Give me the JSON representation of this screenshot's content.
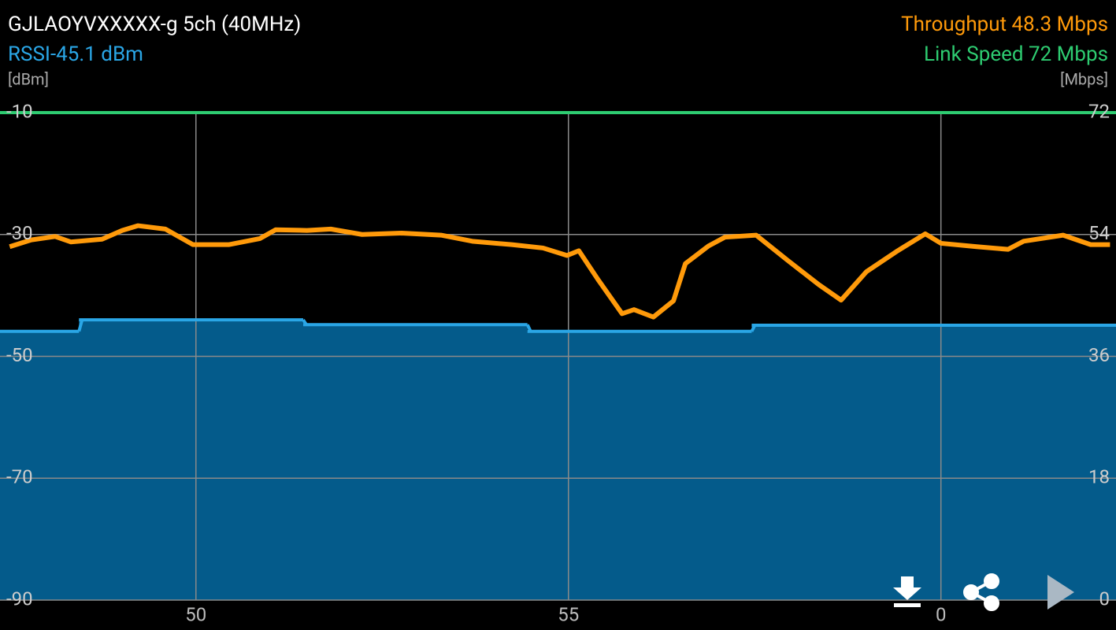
{
  "chart_data": {
    "type": "line",
    "title": "GJLAOYVXXXXX-g 5ch (40MHz)",
    "rssi_label": "RSSI-45.1 dBm",
    "throughput_label": "Throughput 48.3 Mbps",
    "link_speed_label": "Link Speed 72 Mbps",
    "y_unit": "[dBm]",
    "y2_unit": "[Mbps]",
    "xlim": [
      47.37,
      62.35
    ],
    "xticks": [
      50,
      55,
      {
        "value": 60,
        "label": "0"
      }
    ],
    "ylim": [
      -90,
      -10
    ],
    "yticks": [
      -10,
      -30,
      -50,
      -70,
      -90
    ],
    "y2lim": [
      0,
      72
    ],
    "y2ticks": [
      72,
      54,
      36,
      18,
      0
    ],
    "grid": true,
    "series": [
      {
        "name": "RSSI",
        "color": "#2aa6e6",
        "fill": true,
        "step": "post",
        "x": [
          47.37,
          48.43,
          51.44,
          54.45,
          57.46,
          62.35
        ],
        "values": [
          -45.9,
          -44.0,
          -44.8,
          -45.9,
          -44.9,
          -44.9
        ]
      },
      {
        "name": "Throughput",
        "color": "#ff9a0a",
        "axis": "y2",
        "x": [
          47.5,
          47.79,
          48.11,
          48.32,
          48.74,
          49.01,
          49.22,
          49.59,
          49.96,
          50.44,
          50.86,
          51.07,
          51.49,
          51.81,
          52.23,
          52.76,
          53.29,
          53.71,
          54.24,
          54.66,
          54.98,
          55.14,
          55.4,
          55.72,
          55.88,
          56.14,
          56.41,
          56.57,
          56.88,
          57.1,
          57.52,
          57.94,
          58.36,
          58.66,
          59.0,
          59.42,
          59.79,
          60.0,
          60.48,
          60.9,
          61.11,
          61.64,
          62.01,
          62.27
        ],
        "values": [
          52.2,
          53.2,
          53.7,
          52.9,
          53.3,
          54.6,
          55.3,
          54.8,
          52.5,
          52.5,
          53.4,
          54.7,
          54.6,
          54.8,
          54.0,
          54.2,
          53.9,
          53.0,
          52.5,
          52.0,
          50.9,
          51.6,
          47.3,
          42.3,
          42.9,
          41.8,
          44.2,
          49.7,
          52.3,
          53.6,
          53.9,
          50.2,
          46.6,
          44.3,
          48.5,
          51.6,
          54.1,
          52.7,
          52.2,
          51.8,
          53.0,
          53.9,
          52.5,
          52.5
        ]
      },
      {
        "name": "Link Speed",
        "color": "#2ecc71",
        "axis": "y2",
        "x": [
          47.37,
          62.35
        ],
        "values": [
          72,
          72
        ]
      }
    ]
  }
}
